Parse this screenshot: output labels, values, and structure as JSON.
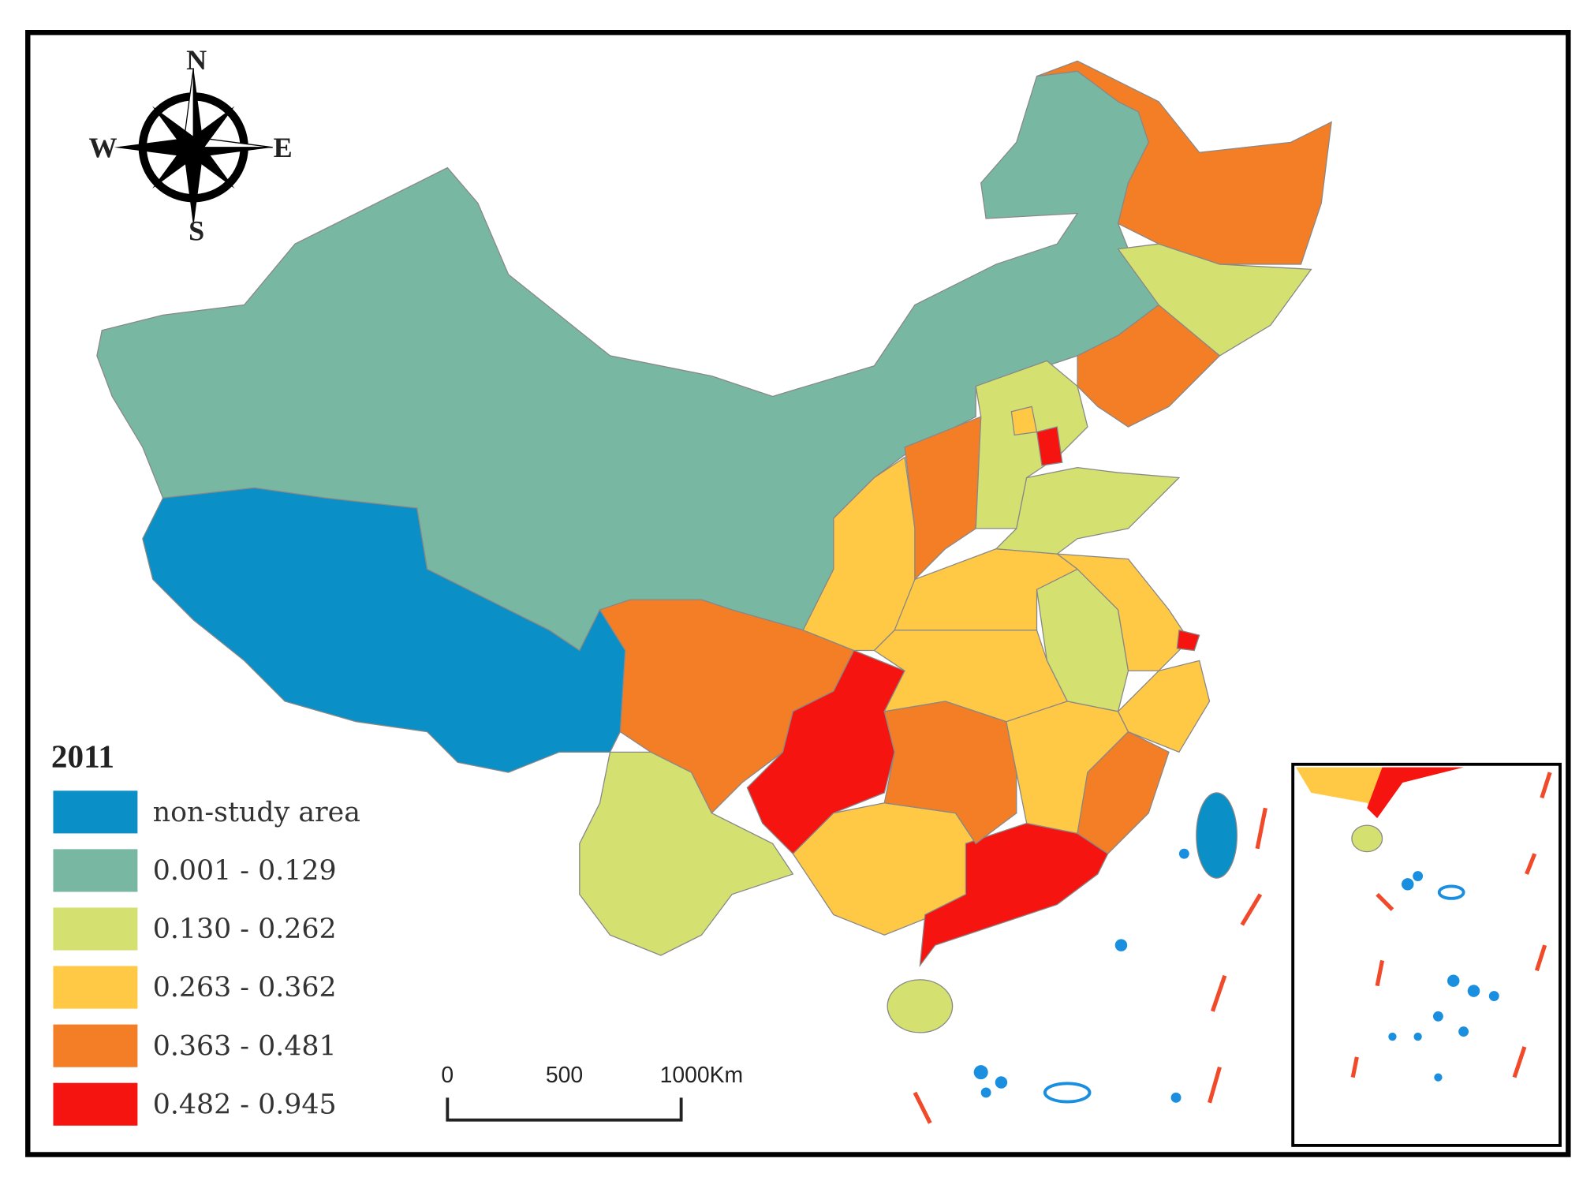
{
  "compass": {
    "n": "N",
    "s": "S",
    "e": "E",
    "w": "W"
  },
  "legend": {
    "title": "2011",
    "items": [
      {
        "label": "non-study area",
        "color": "#0a8fc6"
      },
      {
        "label": "0.001 - 0.129",
        "color": "#78b8a2"
      },
      {
        "label": "0.130 - 0.262",
        "color": "#d4e06f"
      },
      {
        "label": "0.263 - 0.362",
        "color": "#ffc845"
      },
      {
        "label": "0.363 - 0.481",
        "color": "#f47e25"
      },
      {
        "label": "0.482 - 0.945",
        "color": "#f5140f"
      }
    ]
  },
  "scale_bar": {
    "labels": [
      "0",
      "500",
      "1000Km"
    ]
  }
}
